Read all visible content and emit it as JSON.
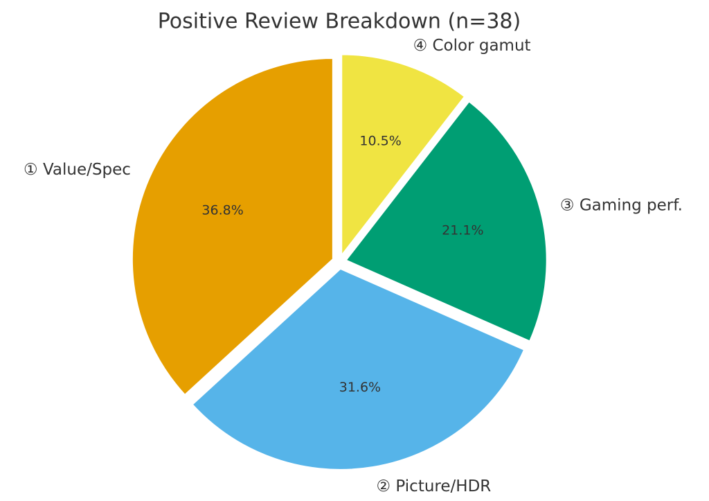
{
  "chart_data": {
    "type": "pie",
    "title": "Positive Review Breakdown (n=38)",
    "categories": [
      "① Value/Spec",
      "② Picture/HDR",
      "③ Gaming perf.",
      "④ Color gamut"
    ],
    "values": [
      36.8,
      31.6,
      21.1,
      10.5
    ],
    "value_labels": [
      "36.8%",
      "31.6%",
      "21.1%",
      "10.5%"
    ],
    "colors": [
      "#E69F00",
      "#56B4E9",
      "#009E73",
      "#F0E442"
    ]
  }
}
